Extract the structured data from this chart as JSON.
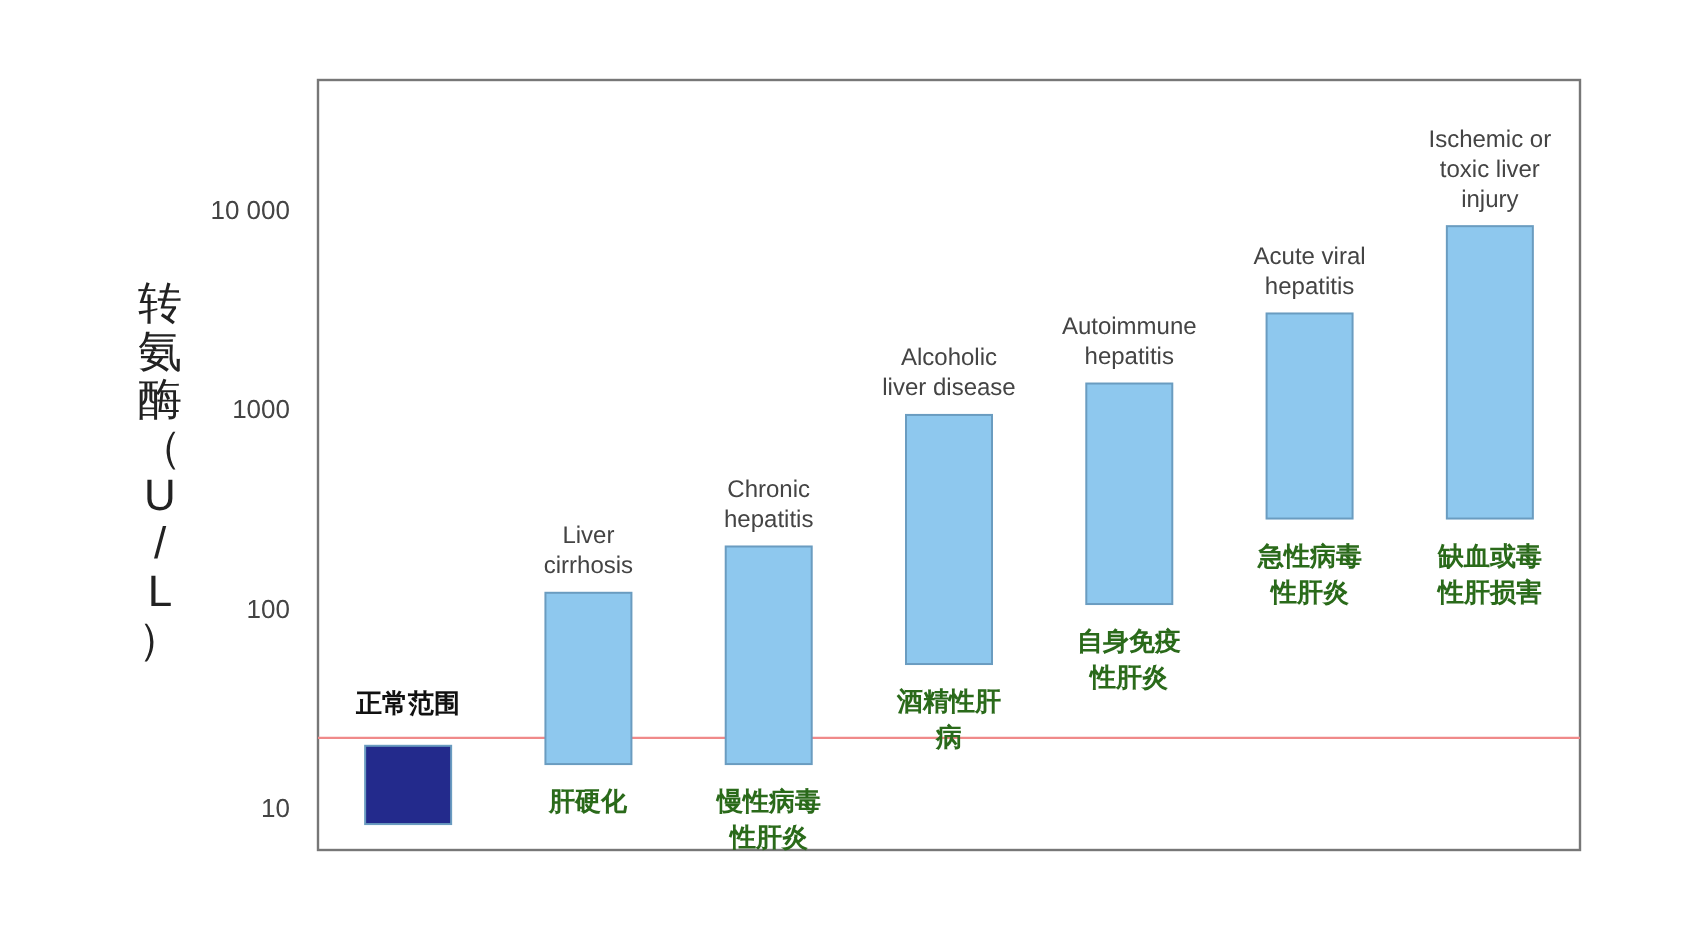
{
  "chart_data": {
    "type": "bar",
    "ylabel": "转氨酶（U/L）",
    "categories": [
      "正常范围",
      "肝硬化",
      "慢性病毒性肝炎",
      "酒精性肝病",
      "自身免疫性肝炎",
      "急性病毒性肝炎",
      "缺血或毒性肝损害"
    ],
    "base": [
      8.5,
      17,
      17,
      54,
      108,
      290,
      290
    ],
    "values": [
      12.5,
      106,
      193,
      906,
      1272,
      2810,
      8210
    ],
    "colors": [
      "#232a8c",
      "#8ec8ee",
      "#8ec8ee",
      "#8ec8ee",
      "#8ec8ee",
      "#8ec8ee",
      "#8ec8ee"
    ],
    "log": true,
    "ylim": [
      6.3,
      46000
    ],
    "yticks": [
      10,
      100,
      1000,
      {
        "value": 10000,
        "label": "10 000"
      }
    ],
    "ref_lines": [
      {
        "axis": "y",
        "value": 23,
        "color": "#f08a8a"
      }
    ],
    "annotations": [
      {
        "text": "Liver cirrhosis",
        "x": "肝硬化",
        "y": 123
      },
      {
        "text": "Chronic hepatitis",
        "x": "慢性病毒性肝炎",
        "y": 210
      },
      {
        "text": "Alcoholic liver disease",
        "x": "酒精性肝病",
        "y": 960
      },
      {
        "text": "Autoimmune hepatitis",
        "x": "自身免疫性肝炎",
        "y": 1380
      },
      {
        "text": "Acute viral hepatitis",
        "x": "急性病毒性肝炎",
        "y": 3100
      },
      {
        "text": "Ischemic or toxic liver injury",
        "x": "缺血或毒性肝损害",
        "y": 8500
      }
    ],
    "grid": false
  }
}
